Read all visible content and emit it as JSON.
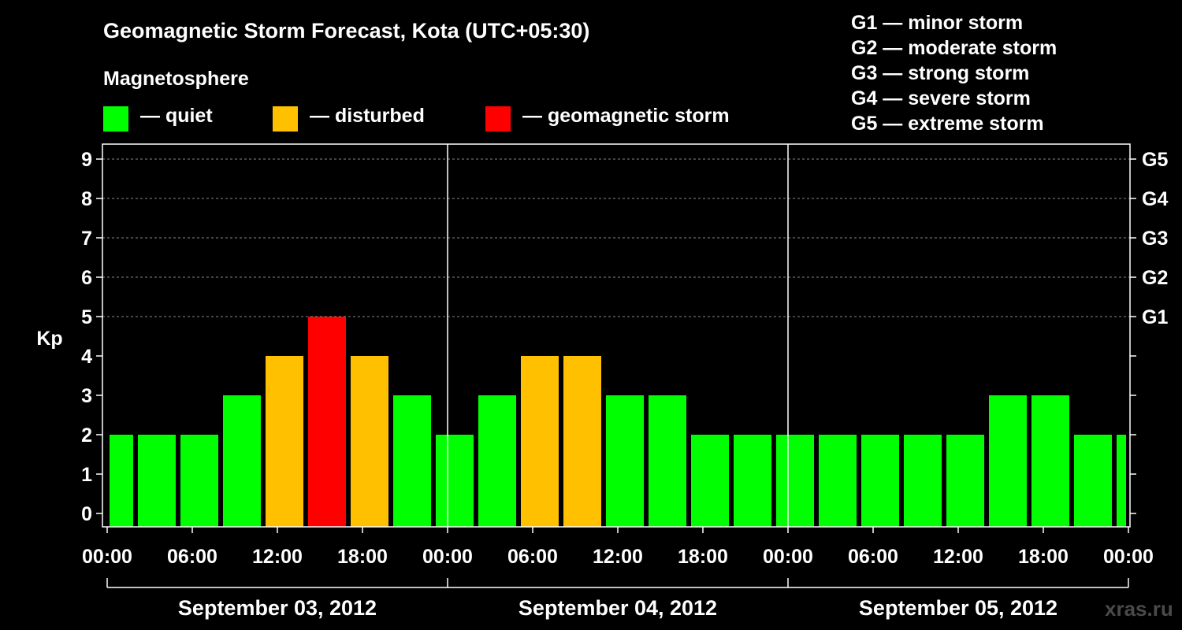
{
  "title": "Geomagnetic Storm Forecast, Kota (UTC+05:30)",
  "legend": {
    "heading": "Magnetosphere",
    "items": [
      {
        "label": "— quiet",
        "color": "#00ff00"
      },
      {
        "label": "— disturbed",
        "color": "#ffc000"
      },
      {
        "label": "— geomagnetic storm",
        "color": "#ff0000"
      }
    ]
  },
  "storm_scale": [
    "G1 — minor storm",
    "G2 — moderate storm",
    "G3 — strong storm",
    "G4 — severe storm",
    "G5 — extreme storm"
  ],
  "watermark": "xras.ru",
  "chart_data": {
    "type": "bar",
    "title": "Geomagnetic Storm Forecast, Kota (UTC+05:30)",
    "ylabel": "Kp",
    "ylim": [
      0,
      9
    ],
    "y_ticks": [
      "0",
      "1",
      "2",
      "3",
      "4",
      "5",
      "6",
      "7",
      "8",
      "9"
    ],
    "right_axis_labels": [
      {
        "kp": 5,
        "label": "G1"
      },
      {
        "kp": 6,
        "label": "G2"
      },
      {
        "kp": 7,
        "label": "G3"
      },
      {
        "kp": 8,
        "label": "G4"
      },
      {
        "kp": 9,
        "label": "G5"
      }
    ],
    "grid": "dashed horizontal",
    "days": [
      "September 03, 2012",
      "September 04, 2012",
      "September 05, 2012"
    ],
    "x_ticks": [
      "00:00",
      "06:00",
      "12:00",
      "18:00",
      "00:00",
      "06:00",
      "12:00",
      "18:00",
      "00:00",
      "06:00",
      "12:00",
      "18:00",
      "00:00"
    ],
    "interval_hours": 3,
    "series": [
      {
        "name": "Kp",
        "values": [
          2,
          2,
          2,
          3,
          4,
          5,
          4,
          3,
          2,
          3,
          4,
          4,
          3,
          3,
          2,
          2,
          2,
          2,
          2,
          2,
          2,
          3,
          3,
          2,
          2
        ],
        "colors": [
          "#00ff00",
          "#00ff00",
          "#00ff00",
          "#00ff00",
          "#ffc000",
          "#ff0000",
          "#ffc000",
          "#00ff00",
          "#00ff00",
          "#00ff00",
          "#ffc000",
          "#ffc000",
          "#00ff00",
          "#00ff00",
          "#00ff00",
          "#00ff00",
          "#00ff00",
          "#00ff00",
          "#00ff00",
          "#00ff00",
          "#00ff00",
          "#00ff00",
          "#00ff00",
          "#00ff00",
          "#00ff00"
        ]
      }
    ]
  }
}
